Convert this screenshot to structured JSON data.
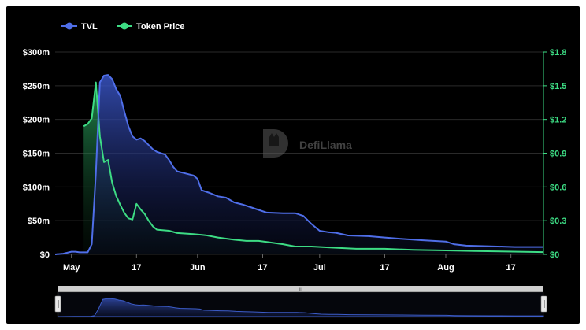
{
  "chart_data": {
    "type": "area",
    "legend": {
      "placement": "top-left",
      "entries": [
        {
          "label": "TVL",
          "color": "#4f6ee8"
        },
        {
          "label": "Token Price",
          "color": "#3ddc84"
        }
      ]
    },
    "watermark": "DefiLlama",
    "x_ticks": [
      "May",
      "17",
      "Jun",
      "17",
      "Jul",
      "17",
      "Aug",
      "17"
    ],
    "x_tick_dates": [
      "2023-05-01",
      "2023-05-17",
      "2023-06-01",
      "2023-06-17",
      "2023-07-01",
      "2023-07-17",
      "2023-08-01",
      "2023-08-17"
    ],
    "x_range": [
      "2023-04-27",
      "2023-08-25"
    ],
    "y_left": {
      "ticks": [
        "$0",
        "$50m",
        "$100m",
        "$150m",
        "$200m",
        "$250m",
        "$300m"
      ],
      "range": [
        0,
        300
      ],
      "unit": "USD millions"
    },
    "y_right": {
      "ticks": [
        "$0",
        "$0.3",
        "$0.6",
        "$0.9",
        "$1.2",
        "$1.5",
        "$1.8"
      ],
      "range": [
        0,
        1.8
      ],
      "color": "#3ddc84"
    },
    "grid": true,
    "series": [
      {
        "name": "TVL",
        "axis": "left",
        "color": "#4f6ee8",
        "points": [
          [
            "2023-04-27",
            0
          ],
          [
            "2023-04-29",
            1
          ],
          [
            "2023-05-01",
            4
          ],
          [
            "2023-05-02",
            4
          ],
          [
            "2023-05-03",
            3
          ],
          [
            "2023-05-05",
            3
          ],
          [
            "2023-05-06",
            15
          ],
          [
            "2023-05-07",
            120
          ],
          [
            "2023-05-08",
            255
          ],
          [
            "2023-05-09",
            265
          ],
          [
            "2023-05-10",
            266
          ],
          [
            "2023-05-11",
            260
          ],
          [
            "2023-05-12",
            245
          ],
          [
            "2023-05-13",
            235
          ],
          [
            "2023-05-14",
            212
          ],
          [
            "2023-05-15",
            190
          ],
          [
            "2023-05-16",
            175
          ],
          [
            "2023-05-17",
            170
          ],
          [
            "2023-05-18",
            172
          ],
          [
            "2023-05-19",
            168
          ],
          [
            "2023-05-20",
            162
          ],
          [
            "2023-05-21",
            156
          ],
          [
            "2023-05-22",
            152
          ],
          [
            "2023-05-24",
            148
          ],
          [
            "2023-05-25",
            140
          ],
          [
            "2023-05-26",
            130
          ],
          [
            "2023-05-27",
            123
          ],
          [
            "2023-05-29",
            120
          ],
          [
            "2023-05-31",
            117
          ],
          [
            "2023-06-01",
            112
          ],
          [
            "2023-06-02",
            95
          ],
          [
            "2023-06-04",
            91
          ],
          [
            "2023-06-06",
            86
          ],
          [
            "2023-06-08",
            84
          ],
          [
            "2023-06-10",
            77
          ],
          [
            "2023-06-12",
            74
          ],
          [
            "2023-06-14",
            70
          ],
          [
            "2023-06-16",
            66
          ],
          [
            "2023-06-18",
            62
          ],
          [
            "2023-06-22",
            61
          ],
          [
            "2023-06-25",
            61
          ],
          [
            "2023-06-27",
            57
          ],
          [
            "2023-06-29",
            45
          ],
          [
            "2023-07-01",
            35
          ],
          [
            "2023-07-03",
            33
          ],
          [
            "2023-07-05",
            32
          ],
          [
            "2023-07-08",
            28
          ],
          [
            "2023-07-13",
            27
          ],
          [
            "2023-07-17",
            25
          ],
          [
            "2023-07-21",
            23
          ],
          [
            "2023-07-26",
            21
          ],
          [
            "2023-08-01",
            19
          ],
          [
            "2023-08-03",
            15
          ],
          [
            "2023-08-06",
            13
          ],
          [
            "2023-08-12",
            12
          ],
          [
            "2023-08-18",
            11
          ],
          [
            "2023-08-25",
            11
          ]
        ]
      },
      {
        "name": "Token Price",
        "axis": "right",
        "color": "#3ddc84",
        "points": [
          [
            "2023-05-04",
            1.14
          ],
          [
            "2023-05-05",
            1.16
          ],
          [
            "2023-05-06",
            1.21
          ],
          [
            "2023-05-07",
            1.53
          ],
          [
            "2023-05-08",
            1.05
          ],
          [
            "2023-05-09",
            0.82
          ],
          [
            "2023-05-10",
            0.84
          ],
          [
            "2023-05-11",
            0.64
          ],
          [
            "2023-05-12",
            0.52
          ],
          [
            "2023-05-13",
            0.44
          ],
          [
            "2023-05-14",
            0.37
          ],
          [
            "2023-05-15",
            0.32
          ],
          [
            "2023-05-16",
            0.31
          ],
          [
            "2023-05-17",
            0.45
          ],
          [
            "2023-05-18",
            0.4
          ],
          [
            "2023-05-19",
            0.36
          ],
          [
            "2023-05-20",
            0.3
          ],
          [
            "2023-05-21",
            0.25
          ],
          [
            "2023-05-22",
            0.22
          ],
          [
            "2023-05-25",
            0.21
          ],
          [
            "2023-05-27",
            0.19
          ],
          [
            "2023-05-31",
            0.18
          ],
          [
            "2023-06-03",
            0.17
          ],
          [
            "2023-06-06",
            0.15
          ],
          [
            "2023-06-10",
            0.13
          ],
          [
            "2023-06-13",
            0.12
          ],
          [
            "2023-06-16",
            0.12
          ],
          [
            "2023-06-18",
            0.11
          ],
          [
            "2023-06-22",
            0.09
          ],
          [
            "2023-06-25",
            0.07
          ],
          [
            "2023-06-29",
            0.07
          ],
          [
            "2023-07-04",
            0.06
          ],
          [
            "2023-07-10",
            0.05
          ],
          [
            "2023-07-17",
            0.05
          ],
          [
            "2023-07-24",
            0.04
          ],
          [
            "2023-08-01",
            0.035
          ],
          [
            "2023-08-08",
            0.03
          ],
          [
            "2023-08-16",
            0.025
          ],
          [
            "2023-08-25",
            0.02
          ]
        ]
      }
    ]
  },
  "navigator": {
    "handle_label": "III"
  }
}
